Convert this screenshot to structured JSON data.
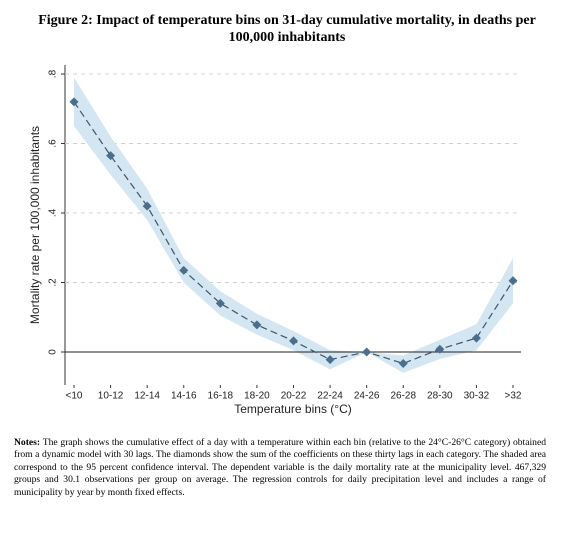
{
  "chart_data": {
    "type": "line",
    "title": "Figure 2: Impact of temperature bins on 31-day cumulative mortality, in deaths per 100,000 inhabitants",
    "y_label": "Mortality rate per 100,000 inhabitants",
    "x_label": "Temperature bins (°C)",
    "categories": [
      "<10",
      "10-12",
      "12-14",
      "14-16",
      "16-18",
      "18-20",
      "20-22",
      "22-24",
      "24-26",
      "26-28",
      "28-30",
      "30-32",
      ">32"
    ],
    "values": [
      0.72,
      0.565,
      0.42,
      0.235,
      0.14,
      0.078,
      0.032,
      -0.022,
      0,
      -0.033,
      0.008,
      0.04,
      0.205
    ],
    "ci_lower": [
      0.65,
      0.51,
      0.38,
      0.2,
      0.105,
      0.05,
      0.005,
      -0.05,
      0,
      -0.06,
      -0.02,
      0.005,
      0.14
    ],
    "ci_upper": [
      0.79,
      0.62,
      0.47,
      0.27,
      0.175,
      0.11,
      0.06,
      0.005,
      0,
      -0.01,
      0.035,
      0.08,
      0.27
    ],
    "color": "#4a6f8c",
    "band_color": "#d3e6f1",
    "ylim": [
      -0.095,
      0.826
    ],
    "yticks": [
      0,
      {
        "value": 0.2,
        "label": ".2"
      },
      {
        "value": 0.4,
        "label": ".4"
      },
      {
        "value": 0.6,
        "label": ".6"
      },
      {
        "value": 0.8,
        "label": ".8"
      }
    ],
    "grid": true,
    "notes_label": "Notes:",
    "notes": "The graph shows the cumulative effect of a day with a temperature within each bin (relative to the 24°C-26°C category) obtained from a dynamic model with 30 lags. The diamonds show the sum of the coefficients on these thirty lags in each category. The shaded area correspond to the 95 percent confidence interval. The dependent variable is the daily mortality rate at the municipality level. 467,329 groups and 30.1 observations per group on average. The regression controls for daily precipitation level and includes a range of municipality by year by month fixed effects."
  }
}
